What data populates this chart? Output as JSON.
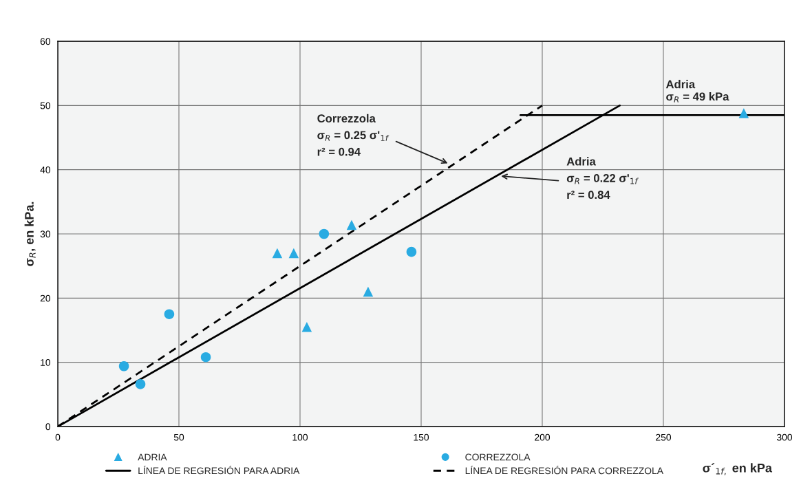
{
  "chart_data": {
    "type": "scatter",
    "xlabel": "σ´$_{1f,}$ en kPa",
    "ylabel": "σ$_{R}$, en kPa.",
    "xlim": [
      0,
      300
    ],
    "ylim": [
      0,
      60
    ],
    "xticks": [
      0,
      50,
      100,
      150,
      200,
      250,
      300
    ],
    "yticks": [
      0,
      10,
      20,
      30,
      40,
      50,
      60
    ],
    "grid": true,
    "legend": "bottom",
    "series": [
      {
        "name": "ADRIA",
        "marker": "triangle",
        "color": "#29abe2",
        "x": [
          90.6,
          97.4,
          102.8,
          121.3,
          128.1,
          283.2
        ],
        "values": [
          27,
          27,
          15.5,
          31.4,
          21,
          48.8
        ]
      },
      {
        "name": "CORREZZOLA",
        "marker": "circle",
        "color": "#29abe2",
        "x": [
          27.3,
          34.1,
          46,
          61.1,
          109.9,
          146
        ],
        "values": [
          9.4,
          6.6,
          17.5,
          10.8,
          30,
          27.2
        ]
      },
      {
        "name": "LÍNEA DE REGRESIÓN PARA ADRIA",
        "type": "line",
        "line_style": "solid",
        "color": "#000000",
        "x": [
          0,
          232
        ],
        "values": [
          0,
          50
        ]
      },
      {
        "name": "LÍNEA DE REGRESIÓN PARA CORREZZOLA",
        "type": "line",
        "line_style": "dashed",
        "color": "#000000",
        "x": [
          0,
          200
        ],
        "values": [
          0,
          50
        ]
      },
      {
        "type": "line",
        "line_style": "solid",
        "color": "#000000",
        "x": [
          191,
          300
        ],
        "values": [
          48.5,
          48.5
        ]
      }
    ],
    "annotations": [
      "Correzzola",
      {
        "text": "σ$_{R}$ = 0.25 σ'$_{1f}$",
        "x": 161,
        "y": 41
      },
      "r² = 0.94",
      "Adria",
      {
        "text": "σ$_{R}$ = 0.22 σ'$_{1f}$",
        "x": 183,
        "y": 39
      },
      "r² = 0.84",
      {
        "text": "Adria\nσ$_{R}$ = 49 kPa",
        "x": 283,
        "y": 49
      }
    ]
  }
}
